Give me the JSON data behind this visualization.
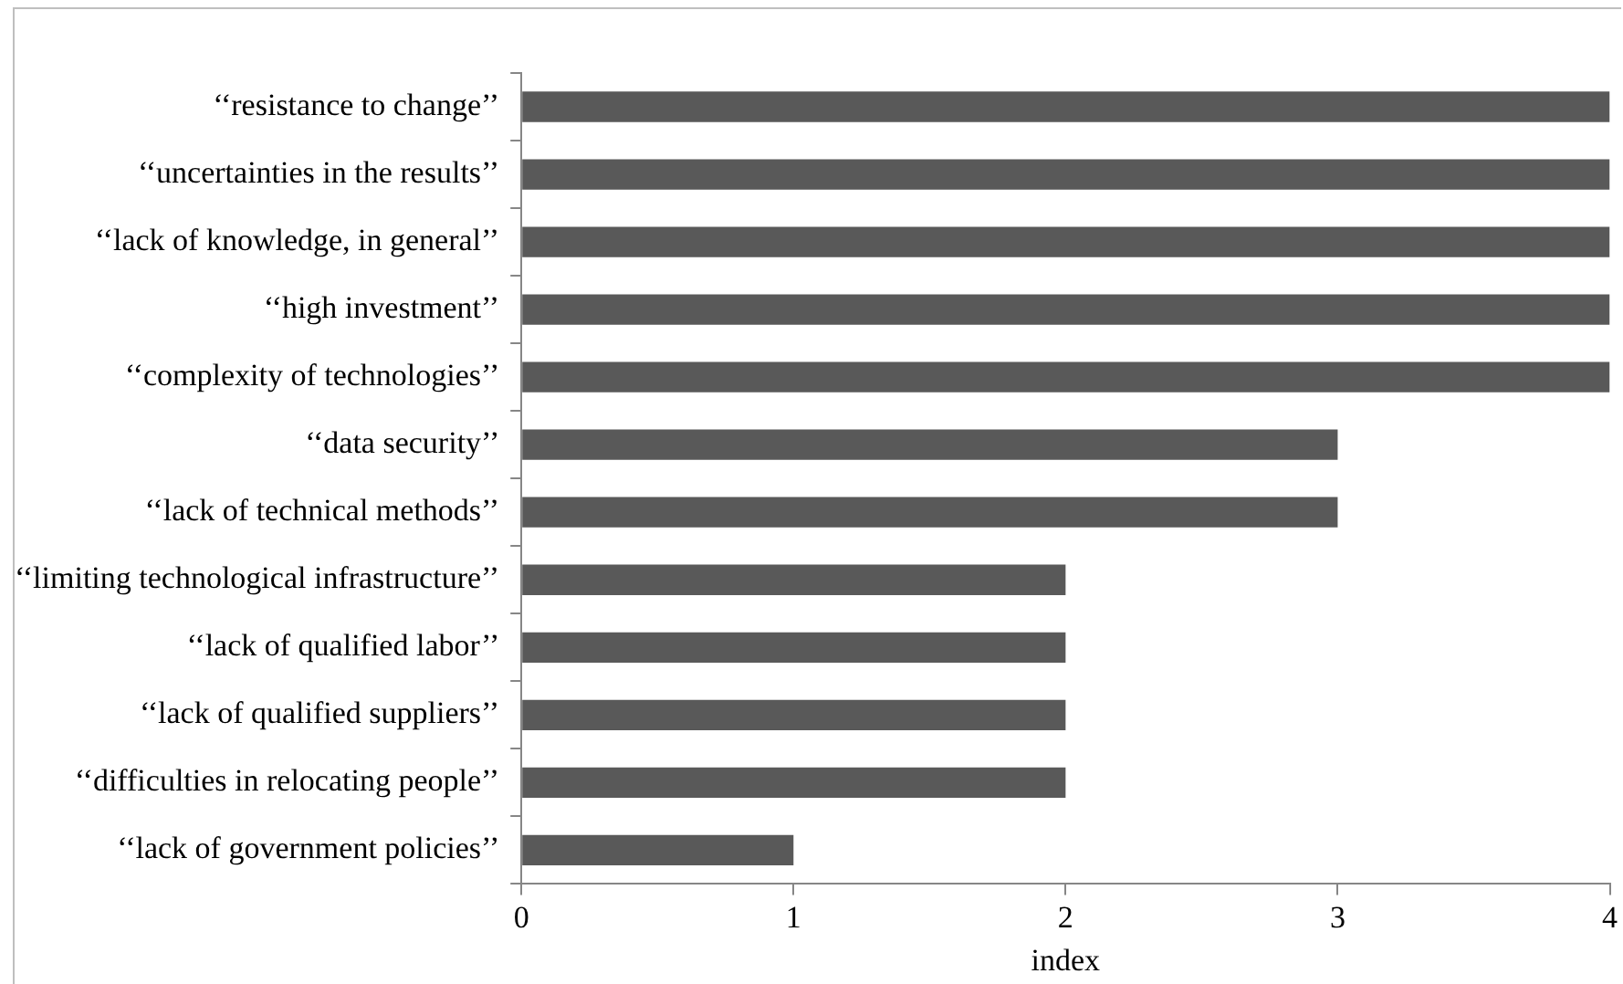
{
  "chart_data": {
    "type": "bar",
    "orientation": "horizontal",
    "xlabel": "index",
    "categories": [
      "‘‘resistance to change’’",
      "‘‘uncertainties in the results’’",
      "‘‘lack of knowledge, in general’’",
      "‘‘high investment’’",
      "‘‘complexity of technologies’’",
      "‘‘data security’’",
      "‘‘lack of technical methods’’",
      "‘‘limiting technological infrastructure’’",
      "‘‘lack of qualified labor’’",
      "‘‘lack of qualified suppliers’’",
      "‘‘difficulties in relocating people’’",
      "‘‘lack of government policies’’"
    ],
    "values": [
      4,
      4,
      4,
      4,
      4,
      3,
      3,
      2,
      2,
      2,
      2,
      1
    ],
    "color": "#595959",
    "xlim": [
      0,
      4
    ],
    "xticks": [
      0,
      1,
      2,
      3,
      4
    ],
    "grid": false,
    "legend": false
  }
}
